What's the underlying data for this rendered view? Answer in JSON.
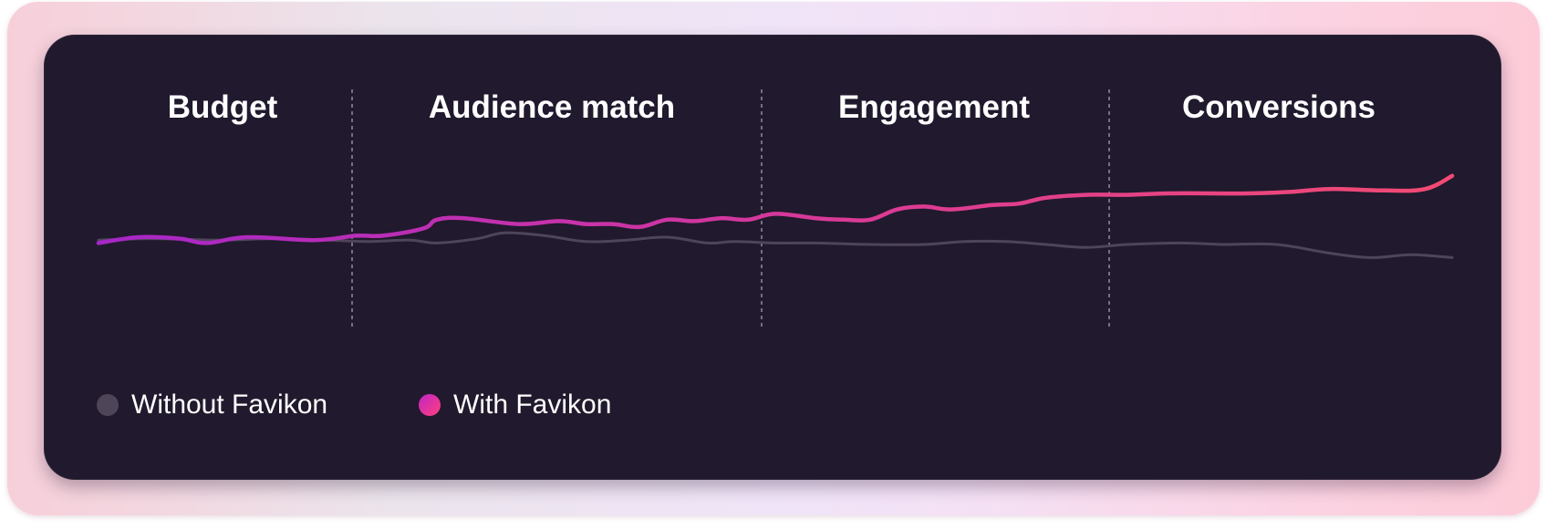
{
  "chart_data": {
    "type": "line",
    "stages": [
      "Budget",
      "Audience match",
      "Engagement",
      "Conversions"
    ],
    "x_domain": [
      0,
      100
    ],
    "y_domain": [
      0,
      100
    ],
    "grid": false,
    "legend_placement": "bottom-left",
    "series": [
      {
        "name": "Without Favikon",
        "color": "#4f4559",
        "points": [
          [
            0,
            48
          ],
          [
            4,
            49
          ],
          [
            9,
            48
          ],
          [
            13,
            49
          ],
          [
            17,
            48
          ],
          [
            20,
            47
          ],
          [
            23,
            48
          ],
          [
            25,
            46
          ],
          [
            28,
            49
          ],
          [
            30,
            53
          ],
          [
            33,
            51
          ],
          [
            36,
            47
          ],
          [
            39,
            48
          ],
          [
            42,
            50
          ],
          [
            45,
            46
          ],
          [
            47,
            47
          ],
          [
            50,
            46
          ],
          [
            53,
            46
          ],
          [
            57,
            45
          ],
          [
            61,
            45
          ],
          [
            64,
            47
          ],
          [
            67,
            47
          ],
          [
            70,
            45
          ],
          [
            73,
            43
          ],
          [
            76,
            45
          ],
          [
            80,
            46
          ],
          [
            83,
            45
          ],
          [
            87,
            45
          ],
          [
            91,
            39
          ],
          [
            94,
            36
          ],
          [
            97,
            38
          ],
          [
            100,
            36
          ]
        ]
      },
      {
        "name": "With Favikon",
        "color": "#e13b8d",
        "gradient": [
          "#a726c9",
          "#d93a97",
          "#f24b73"
        ],
        "points": [
          [
            0,
            46
          ],
          [
            3,
            50
          ],
          [
            6,
            49
          ],
          [
            8,
            46
          ],
          [
            11,
            50
          ],
          [
            16,
            48
          ],
          [
            19,
            51
          ],
          [
            21,
            51
          ],
          [
            24,
            56
          ],
          [
            25,
            62
          ],
          [
            27,
            63
          ],
          [
            31,
            59
          ],
          [
            34,
            61
          ],
          [
            36,
            59
          ],
          [
            38,
            59
          ],
          [
            40,
            57
          ],
          [
            42,
            62
          ],
          [
            44,
            61
          ],
          [
            46,
            63
          ],
          [
            48,
            62
          ],
          [
            50,
            66
          ],
          [
            53,
            63
          ],
          [
            55,
            62
          ],
          [
            57,
            62
          ],
          [
            59,
            69
          ],
          [
            61,
            71
          ],
          [
            63,
            69
          ],
          [
            66,
            72
          ],
          [
            68,
            73
          ],
          [
            70,
            77
          ],
          [
            73,
            79
          ],
          [
            76,
            79
          ],
          [
            79,
            80
          ],
          [
            82,
            80
          ],
          [
            85,
            80
          ],
          [
            88,
            81
          ],
          [
            91,
            83
          ],
          [
            95,
            82
          ],
          [
            98,
            83
          ],
          [
            100,
            92
          ]
        ]
      }
    ]
  },
  "legend": {
    "items": [
      {
        "label": "Without Favikon",
        "color": "#4f4559"
      },
      {
        "label": "With Favikon",
        "color_from": "#c126c7",
        "color_to": "#ff3f7b"
      }
    ]
  },
  "colors": {
    "card_background": "#21192d",
    "stage_divider": "#9c94a8",
    "outer_gradient": [
      "#f7cfd9",
      "#ebe4ec",
      "#f0e4f8",
      "#fdcbd8"
    ]
  }
}
